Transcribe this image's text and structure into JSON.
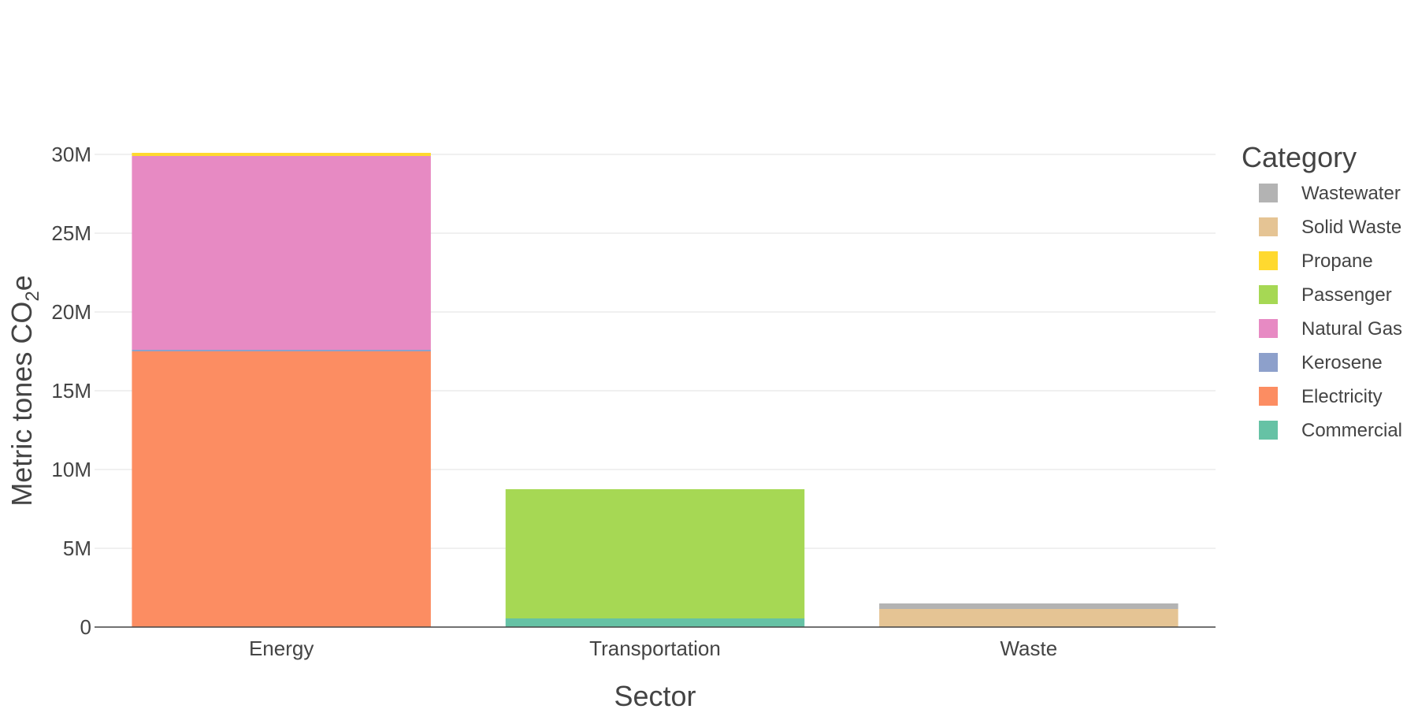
{
  "chart_data": {
    "type": "bar",
    "stacked": true,
    "categories": [
      "Energy",
      "Transportation",
      "Waste"
    ],
    "series": [
      {
        "name": "Commercial",
        "color": "#66c2a5",
        "values": [
          0,
          0.55,
          0
        ]
      },
      {
        "name": "Electricity",
        "color": "#fc8d62",
        "values": [
          17.5,
          0,
          0
        ]
      },
      {
        "name": "Kerosene",
        "color": "#8da0cb",
        "values": [
          0.1,
          0,
          0
        ]
      },
      {
        "name": "Natural Gas",
        "color": "#e78ac3",
        "values": [
          12.3,
          0,
          0
        ]
      },
      {
        "name": "Passenger",
        "color": "#a6d854",
        "values": [
          0,
          8.2,
          0
        ]
      },
      {
        "name": "Propane",
        "color": "#ffd92f",
        "values": [
          0.2,
          0,
          0
        ]
      },
      {
        "name": "Solid Waste",
        "color": "#e5c494",
        "values": [
          0,
          0,
          1.15
        ]
      },
      {
        "name": "Wastewater",
        "color": "#b3b3b3",
        "values": [
          0,
          0,
          0.35
        ]
      }
    ],
    "value_unit": "millions of metric tones CO2e",
    "xlabel": "Sector",
    "ylabel": {
      "prefix": "Metric tones CO",
      "subscript": "2",
      "suffix": "e"
    },
    "ylim": [
      0,
      30
    ],
    "yticks": [
      0,
      5,
      10,
      15,
      20,
      25,
      30
    ],
    "ytick_labels": [
      "0",
      "5M",
      "10M",
      "15M",
      "20M",
      "25M",
      "30M"
    ],
    "grid": true,
    "legend": {
      "title": "Category",
      "placement": "right",
      "order": "reversed"
    }
  }
}
